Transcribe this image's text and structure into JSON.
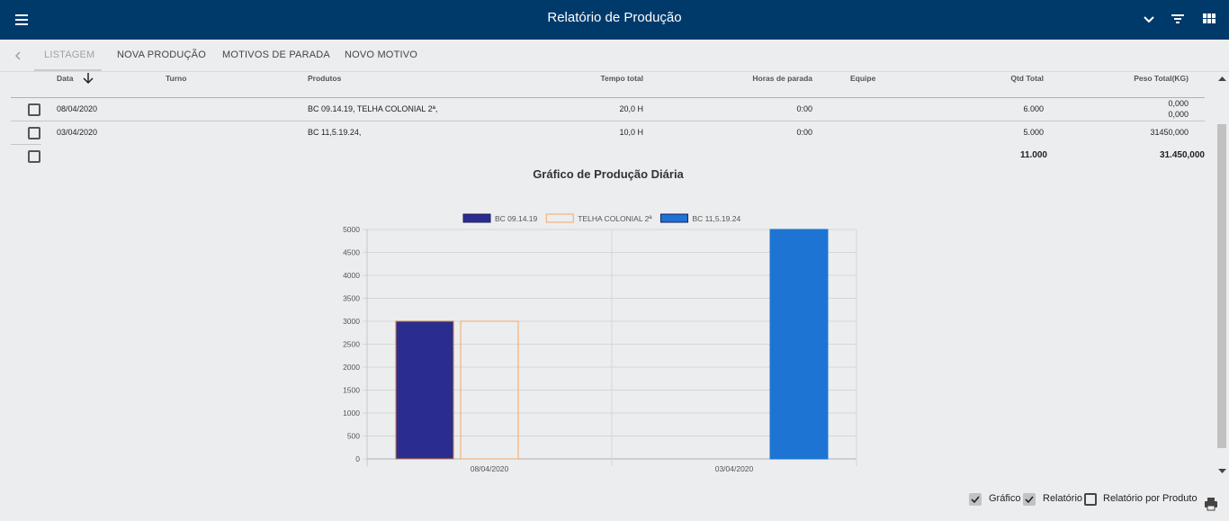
{
  "header": {
    "title": "Relatório de Produção"
  },
  "tabs": [
    {
      "label": "LISTAGEM",
      "active": true
    },
    {
      "label": "NOVA PRODUÇÃO"
    },
    {
      "label": "MOTIVOS DE PARADA"
    },
    {
      "label": "NOVO MOTIVO"
    }
  ],
  "table": {
    "headers": {
      "data": "Data",
      "turno": "Turno",
      "produtos": "Produtos",
      "tempo": "Tempo total",
      "horas": "Horas de parada",
      "equipe": "Equipe",
      "qtd": "Qtd Total",
      "peso": "Peso Total(KG)"
    },
    "rows": [
      {
        "data": "08/04/2020",
        "turno": "",
        "produtos": "BC 09.14.19, TELHA COLONIAL 2ª,",
        "tempo": "20,0 H",
        "horas": "0:00",
        "equipe": "",
        "qtd": "6.000",
        "peso1": "0,000",
        "peso2": "0,000"
      },
      {
        "data": "03/04/2020",
        "turno": "",
        "produtos": "BC 11,5.19.24,",
        "tempo": "10,0 H",
        "horas": "0:00",
        "equipe": "",
        "qtd": "5.000",
        "peso1": "31450,000",
        "peso2": ""
      }
    ],
    "totals": {
      "qtd": "11.000",
      "peso": "31.450,000"
    }
  },
  "chart_title": "Gráfico de Produção Diária",
  "chart_data": {
    "type": "bar",
    "categories": [
      "08/04/2020",
      "03/04/2020"
    ],
    "series": [
      {
        "name": "BC 09.14.19",
        "values": [
          3000,
          0
        ],
        "color": "#2b2d8e",
        "fill": true
      },
      {
        "name": "TELHA COLONIAL 2ª",
        "values": [
          3000,
          0
        ],
        "color": "#f5a86a",
        "fill": false
      },
      {
        "name": "BC 11,5.19.24",
        "values": [
          0,
          5000
        ],
        "color": "#1e74d2",
        "fill": true
      }
    ],
    "yticks": [
      "0",
      "500",
      "1000",
      "1500",
      "2000",
      "2500",
      "3000",
      "3500",
      "4000",
      "4500",
      "5000"
    ],
    "ylim": [
      0,
      5000
    ],
    "legend": "top",
    "grid": true
  },
  "options": [
    {
      "label": "Gráfico",
      "checked": true
    },
    {
      "label": "Relatório",
      "checked": true
    },
    {
      "label": "Relatório por Produto",
      "checked": false
    }
  ],
  "icons": [
    "menu-icon",
    "chevron-down-icon",
    "filter-icon",
    "grid-icon",
    "chevron-left-icon",
    "sort-arrow-down-icon",
    "print-icon",
    "check-icon"
  ]
}
